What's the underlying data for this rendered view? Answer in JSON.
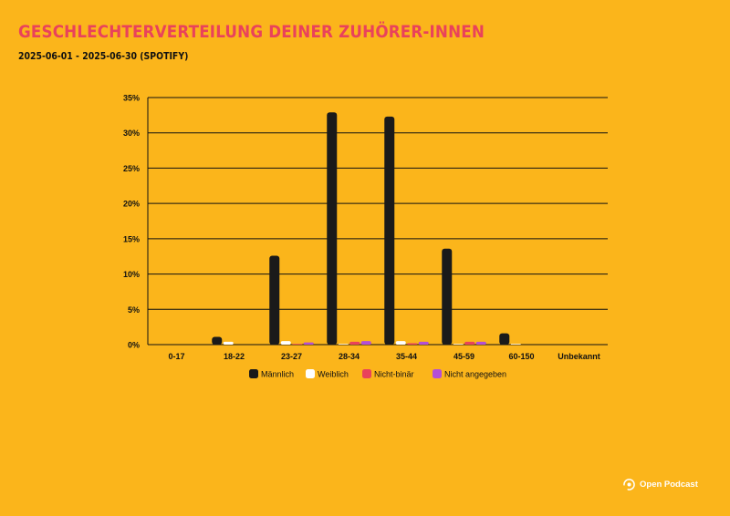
{
  "header": {
    "title": "Geschlechterverteilung deiner Zuhörer-innen",
    "subtitle": "2025-06-01 - 2025-06-30 (Spotify)"
  },
  "brand": {
    "name": "Open Podcast",
    "icon": "open-podcast-logo-icon"
  },
  "colors": {
    "background": "#FBB51B",
    "title": "#E9425B",
    "male": "#1A1A1A",
    "female": "#FFFFFF",
    "nonbinary": "#E9425B",
    "unspecified": "#B44FD6"
  },
  "chart_data": {
    "type": "bar",
    "categories": [
      "0-17",
      "18-22",
      "23-27",
      "28-34",
      "35-44",
      "45-59",
      "60-150",
      "Unbekannt"
    ],
    "series": [
      {
        "name": "Männlich",
        "color": "#1A1A1A",
        "values": [
          0,
          1.1,
          12.6,
          32.9,
          32.3,
          13.6,
          1.6,
          0
        ]
      },
      {
        "name": "Weiblich",
        "color": "#FFFFFF",
        "values": [
          0,
          0.4,
          0.5,
          0.1,
          0.5,
          0.1,
          0.1,
          0
        ]
      },
      {
        "name": "Nicht-binär",
        "color": "#E9425B",
        "values": [
          0,
          0,
          0.1,
          0.4,
          0.2,
          0.4,
          0,
          0
        ]
      },
      {
        "name": "Nicht angegeben",
        "color": "#B44FD6",
        "values": [
          0,
          0,
          0.3,
          0.5,
          0.4,
          0.4,
          0,
          0
        ]
      }
    ],
    "y_ticks": [
      "0%",
      "5%",
      "10%",
      "15%",
      "20%",
      "25%",
      "30%",
      "35%"
    ],
    "ylim": [
      0,
      35
    ],
    "grid": true,
    "legend_position": "bottom-center"
  }
}
